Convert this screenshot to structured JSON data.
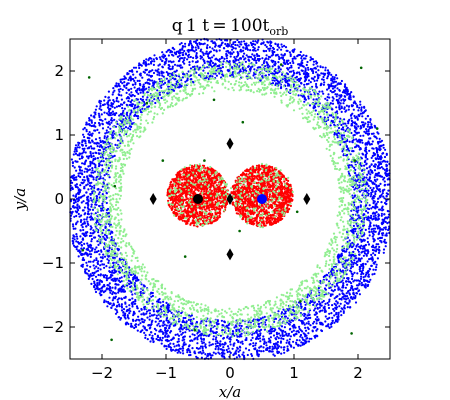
{
  "chart_data": {
    "type": "scatter",
    "title": "q=1 t=100t_orb",
    "title_parts": {
      "main": "q 1 t = 100t",
      "sub": "orb"
    },
    "xlabel": "x/a",
    "ylabel": "y/a",
    "xlim": [
      -2.5,
      2.5
    ],
    "ylim": [
      -2.5,
      2.5
    ],
    "x_ticks": [
      -2,
      -1,
      0,
      1,
      2
    ],
    "y_ticks": [
      -2,
      -1,
      0,
      1,
      2
    ],
    "x_tick_labels": [
      "−2",
      "−1",
      "0",
      "1",
      "2"
    ],
    "y_tick_labels": [
      "−2",
      "−1",
      "0",
      "1",
      "2"
    ],
    "grid": false,
    "legend": "none",
    "series": [
      {
        "color": "#0000ff",
        "region": "annulus",
        "center": [
          0,
          0
        ],
        "radius_range": [
          1.9,
          2.55
        ],
        "approx_points": 5200
      },
      {
        "color": "#90ee90",
        "region": "annulus",
        "center": [
          0,
          0
        ],
        "radius_range": [
          1.7,
          2.15
        ],
        "approx_points": 2200
      },
      {
        "color": "#ff0000",
        "region": "disk",
        "center": [
          -0.5,
          0.05
        ],
        "radius": 0.48,
        "approx_points": 1300
      },
      {
        "color": "#ff0000",
        "region": "disk",
        "center": [
          0.5,
          0.05
        ],
        "radius": 0.48,
        "approx_points": 1300
      },
      {
        "color": "#90ee90",
        "region": "disk",
        "center": [
          -0.5,
          0.05
        ],
        "radius": 0.5,
        "approx_points": 160
      },
      {
        "color": "#90ee90",
        "region": "disk",
        "center": [
          0.5,
          0.05
        ],
        "radius": 0.5,
        "approx_points": 160
      },
      {
        "color": "#006400",
        "region": "points",
        "points": [
          [
            -1.05,
            0.6
          ],
          [
            -0.4,
            0.6
          ],
          [
            -0.7,
            -0.9
          ],
          [
            -1.8,
            0.2
          ],
          [
            0.2,
            1.2
          ],
          [
            0.15,
            -0.5
          ],
          [
            1.05,
            -0.2
          ],
          [
            2.05,
            2.05
          ],
          [
            -2.2,
            1.9
          ],
          [
            1.9,
            -2.1
          ],
          [
            -1.85,
            -2.2
          ],
          [
            -1.3,
            1.5
          ],
          [
            0.8,
            2.1
          ],
          [
            -0.25,
            1.55
          ],
          [
            2.3,
            1.1
          ],
          [
            -2.3,
            -0.8
          ],
          [
            1.1,
            -1.6
          ],
          [
            -0.55,
            -2.05
          ],
          [
            1.95,
            0.6
          ]
        ]
      }
    ],
    "markers": [
      {
        "name": "primary-mass",
        "x": -0.5,
        "y": 0.0,
        "color": "#000000",
        "shape": "circle"
      },
      {
        "name": "secondary-mass",
        "x": 0.5,
        "y": 0.0,
        "color": "#0000ff",
        "shape": "circle"
      },
      {
        "name": "L1-point",
        "x": 0.0,
        "y": 0.0,
        "color": "#000000",
        "shape": "diamond"
      },
      {
        "name": "L2-point",
        "x": 1.2,
        "y": 0.0,
        "color": "#000000",
        "shape": "diamond"
      },
      {
        "name": "L3-point",
        "x": -1.2,
        "y": 0.0,
        "color": "#000000",
        "shape": "diamond"
      },
      {
        "name": "L4-point",
        "x": 0.0,
        "y": 0.866,
        "color": "#000000",
        "shape": "diamond"
      },
      {
        "name": "L5-point",
        "x": 0.0,
        "y": -0.866,
        "color": "#000000",
        "shape": "diamond"
      }
    ]
  }
}
